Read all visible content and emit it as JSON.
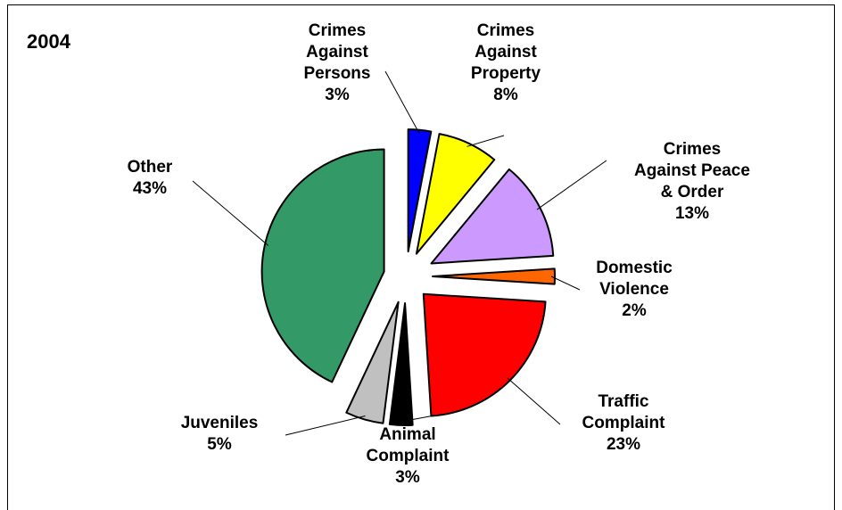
{
  "chart_data": {
    "type": "pie",
    "title": "2004",
    "slices": [
      {
        "name": "Crimes Against Persons",
        "label_lines": [
          "Crimes",
          "Against",
          "Persons",
          "3%"
        ],
        "value": 3,
        "color": "#0000ff"
      },
      {
        "name": "Crimes Against Property",
        "label_lines": [
          "Crimes",
          "Against",
          "Property",
          "8%"
        ],
        "value": 8,
        "color": "#ffff00"
      },
      {
        "name": "Crimes Against Peace & Order",
        "label_lines": [
          "Crimes",
          "Against Peace",
          "& Order",
          "13%"
        ],
        "value": 13,
        "color": "#cc99ff"
      },
      {
        "name": "Domestic Violence",
        "label_lines": [
          "Domestic",
          "Violence",
          "2%"
        ],
        "value": 2,
        "color": "#ff6600"
      },
      {
        "name": "Traffic Complaint",
        "label_lines": [
          "Traffic",
          "Complaint",
          "23%"
        ],
        "value": 23,
        "color": "#ff0000"
      },
      {
        "name": "Animal Complaint",
        "label_lines": [
          "Animal",
          "Complaint",
          "3%"
        ],
        "value": 3,
        "color": "#000000"
      },
      {
        "name": "Juveniles",
        "label_lines": [
          "Juveniles",
          "5%"
        ],
        "value": 5,
        "color": "#c0c0c0"
      },
      {
        "name": "Other",
        "label_lines": [
          "Other",
          "43%"
        ],
        "value": 43,
        "color": "#339966"
      }
    ]
  }
}
